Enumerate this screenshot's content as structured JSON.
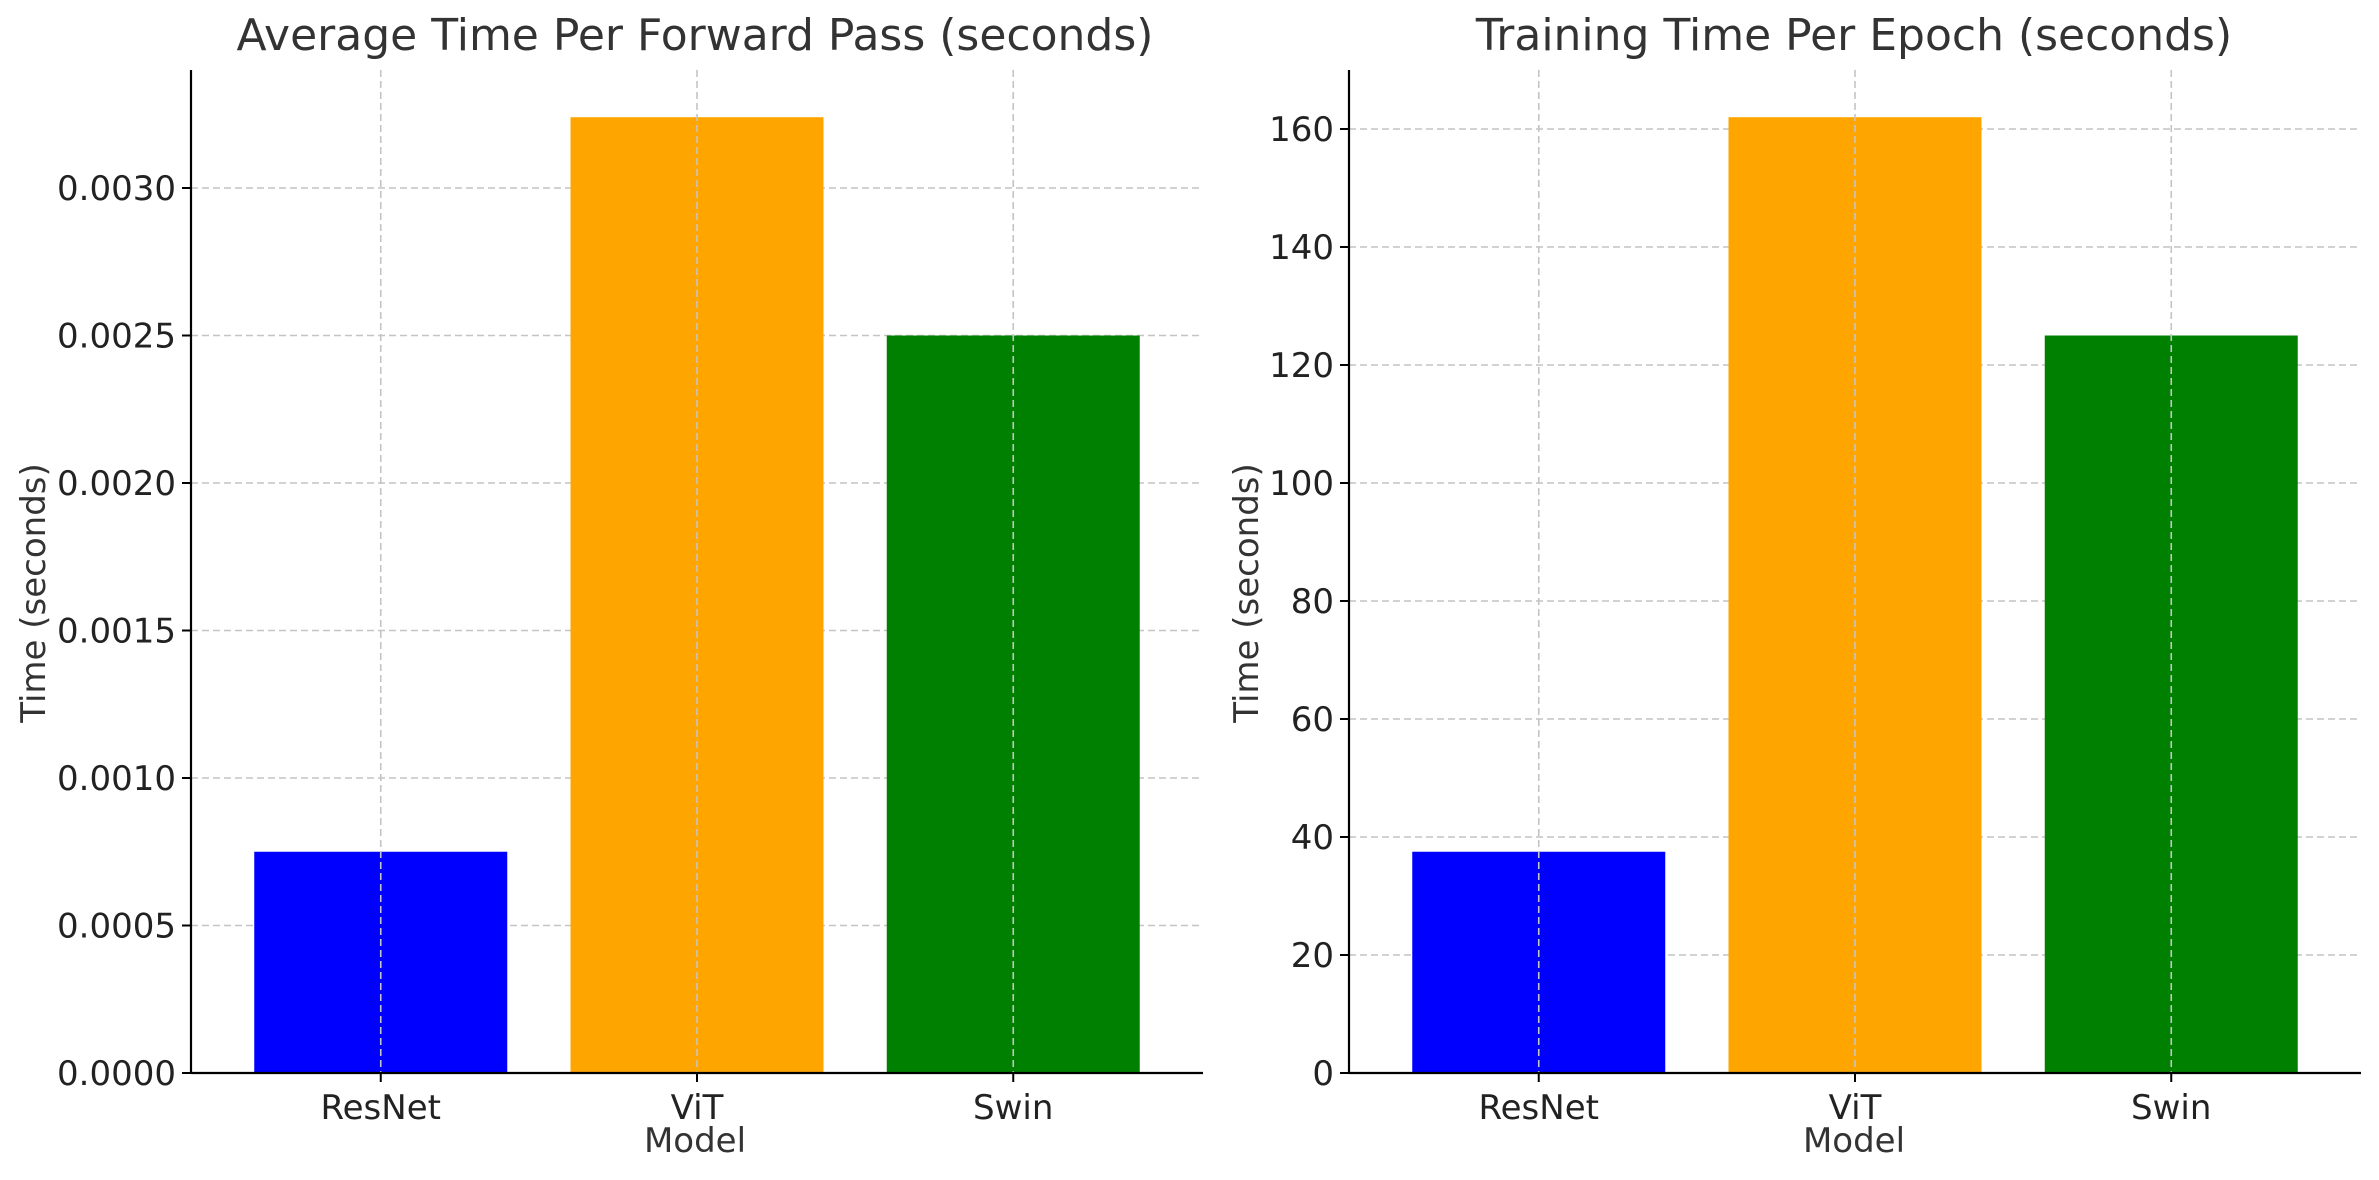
{
  "chart_data": [
    {
      "type": "bar",
      "title": "Average Time Per Forward Pass (seconds)",
      "xlabel": "Model",
      "ylabel": "Time (seconds)",
      "categories": [
        "ResNet",
        "ViT",
        "Swin"
      ],
      "values": [
        0.00075,
        0.00324,
        0.0025
      ],
      "colors": [
        "#0000ff",
        "#ffa500",
        "#008000"
      ],
      "ylim": [
        0,
        0.0034
      ],
      "yticks": [
        0.0,
        0.0005,
        0.001,
        0.0015,
        0.002,
        0.0025,
        0.003
      ],
      "ytick_labels": [
        "0.0000",
        "0.0005",
        "0.0010",
        "0.0015",
        "0.0020",
        "0.0025",
        "0.0030"
      ],
      "grid": true,
      "legend": "none"
    },
    {
      "type": "bar",
      "title": "Training Time Per Epoch (seconds)",
      "xlabel": "Model",
      "ylabel": "Time (seconds)",
      "categories": [
        "ResNet",
        "ViT",
        "Swin"
      ],
      "values": [
        37.5,
        162,
        125
      ],
      "colors": [
        "#0000ff",
        "#ffa500",
        "#008000"
      ],
      "ylim": [
        0,
        170
      ],
      "yticks": [
        0,
        20,
        40,
        60,
        80,
        100,
        120,
        140,
        160
      ],
      "ytick_labels": [
        "0",
        "20",
        "40",
        "60",
        "80",
        "100",
        "120",
        "140",
        "160"
      ],
      "grid": true,
      "legend": "none"
    }
  ]
}
